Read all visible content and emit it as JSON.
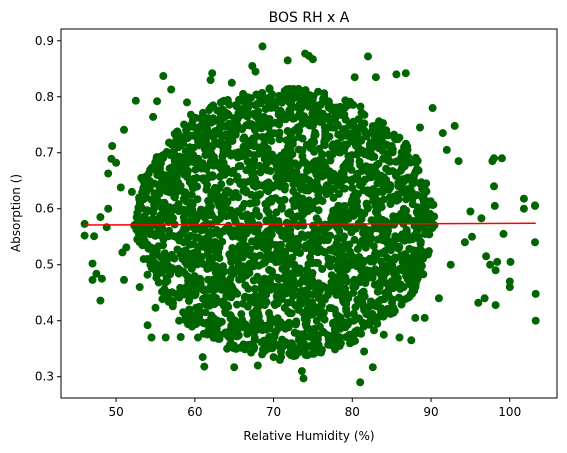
{
  "chart_data": {
    "type": "scatter",
    "title": "BOS RH x A",
    "xlabel": "Relative Humidity (%)",
    "ylabel": "Absorption ()",
    "xlim": [
      43,
      106
    ],
    "ylim": [
      0.262,
      0.921
    ],
    "xticks": [
      50,
      60,
      70,
      80,
      90,
      100
    ],
    "yticks": [
      0.3,
      0.4,
      0.5,
      0.6,
      0.7,
      0.8,
      0.9
    ],
    "grid": false,
    "colors": {
      "points": "#006400",
      "fit_line": "#ff0000",
      "axes": "#000000",
      "background": "#ffffff"
    },
    "series": [
      {
        "kind": "scatter",
        "points": [
          [
            46.0,
            0.573
          ],
          [
            46.0,
            0.552
          ],
          [
            47.2,
            0.551
          ],
          [
            47.0,
            0.502
          ],
          [
            47.0,
            0.473
          ],
          [
            47.5,
            0.484
          ],
          [
            48.0,
            0.436
          ],
          [
            48.2,
            0.475
          ],
          [
            48.0,
            0.585
          ],
          [
            48.8,
            0.567
          ],
          [
            49.0,
            0.6
          ],
          [
            49.4,
            0.689
          ],
          [
            49.0,
            0.663
          ],
          [
            49.5,
            0.712
          ],
          [
            50.0,
            0.682
          ],
          [
            50.6,
            0.638
          ],
          [
            51.0,
            0.741
          ],
          [
            50.8,
            0.522
          ],
          [
            51.3,
            0.531
          ],
          [
            51.0,
            0.473
          ],
          [
            52.0,
            0.63
          ],
          [
            52.3,
            0.57
          ],
          [
            52.5,
            0.793
          ],
          [
            53.0,
            0.46
          ],
          [
            53.2,
            0.655
          ],
          [
            53.5,
            0.51
          ],
          [
            54.0,
            0.392
          ],
          [
            54.5,
            0.37
          ],
          [
            54.7,
            0.764
          ],
          [
            55.0,
            0.423
          ],
          [
            55.2,
            0.792
          ],
          [
            55.6,
            0.685
          ],
          [
            56.0,
            0.837
          ],
          [
            56.3,
            0.37
          ],
          [
            57.0,
            0.813
          ],
          [
            58.0,
            0.4
          ],
          [
            58.2,
            0.371
          ],
          [
            59.0,
            0.79
          ],
          [
            59.5,
            0.768
          ],
          [
            60.4,
            0.37
          ],
          [
            61.0,
            0.335
          ],
          [
            61.2,
            0.318
          ],
          [
            62.0,
            0.83
          ],
          [
            62.2,
            0.842
          ],
          [
            63.3,
            0.72
          ],
          [
            64.1,
            0.35
          ],
          [
            64.7,
            0.825
          ],
          [
            65.0,
            0.317
          ],
          [
            66.3,
            0.35
          ],
          [
            67.3,
            0.855
          ],
          [
            67.7,
            0.845
          ],
          [
            68.0,
            0.32
          ],
          [
            68.6,
            0.89
          ],
          [
            69.5,
            0.815
          ],
          [
            70.0,
            0.335
          ],
          [
            70.8,
            0.33
          ],
          [
            71.8,
            0.865
          ],
          [
            72.3,
            0.8
          ],
          [
            73.6,
            0.31
          ],
          [
            73.8,
            0.297
          ],
          [
            74.0,
            0.877
          ],
          [
            74.5,
            0.873
          ],
          [
            75.0,
            0.867
          ],
          [
            76.0,
            0.345
          ],
          [
            77.0,
            0.367
          ],
          [
            77.8,
            0.76
          ],
          [
            78.4,
            0.355
          ],
          [
            79.0,
            0.768
          ],
          [
            80.3,
            0.835
          ],
          [
            81.0,
            0.29
          ],
          [
            81.5,
            0.345
          ],
          [
            82.0,
            0.872
          ],
          [
            82.6,
            0.317
          ],
          [
            83.0,
            0.835
          ],
          [
            84.0,
            0.375
          ],
          [
            84.3,
            0.74
          ],
          [
            85.6,
            0.84
          ],
          [
            86.0,
            0.37
          ],
          [
            86.8,
            0.842
          ],
          [
            87.5,
            0.365
          ],
          [
            88.0,
            0.405
          ],
          [
            88.6,
            0.745
          ],
          [
            89.2,
            0.405
          ],
          [
            90.2,
            0.78
          ],
          [
            91.0,
            0.44
          ],
          [
            91.5,
            0.735
          ],
          [
            92.0,
            0.705
          ],
          [
            92.5,
            0.5
          ],
          [
            93.0,
            0.748
          ],
          [
            93.5,
            0.685
          ],
          [
            94.3,
            0.54
          ],
          [
            95.0,
            0.595
          ],
          [
            95.2,
            0.55
          ],
          [
            96.0,
            0.432
          ],
          [
            96.4,
            0.583
          ],
          [
            96.8,
            0.44
          ],
          [
            97.0,
            0.515
          ],
          [
            97.5,
            0.5
          ],
          [
            97.8,
            0.685
          ],
          [
            98.0,
            0.69
          ],
          [
            98.0,
            0.64
          ],
          [
            98.1,
            0.605
          ],
          [
            98.2,
            0.428
          ],
          [
            98.2,
            0.49
          ],
          [
            98.4,
            0.505
          ],
          [
            99.0,
            0.69
          ],
          [
            99.2,
            0.555
          ],
          [
            100.0,
            0.47
          ],
          [
            100.0,
            0.46
          ],
          [
            100.1,
            0.505
          ],
          [
            101.8,
            0.618
          ],
          [
            101.8,
            0.6
          ],
          [
            103.2,
            0.606
          ],
          [
            103.2,
            0.605
          ],
          [
            103.2,
            0.54
          ],
          [
            103.3,
            0.448
          ],
          [
            103.3,
            0.4
          ]
        ]
      },
      {
        "kind": "line",
        "x": [
          46.0,
          103.3
        ],
        "y": [
          0.571,
          0.574
        ]
      }
    ]
  }
}
